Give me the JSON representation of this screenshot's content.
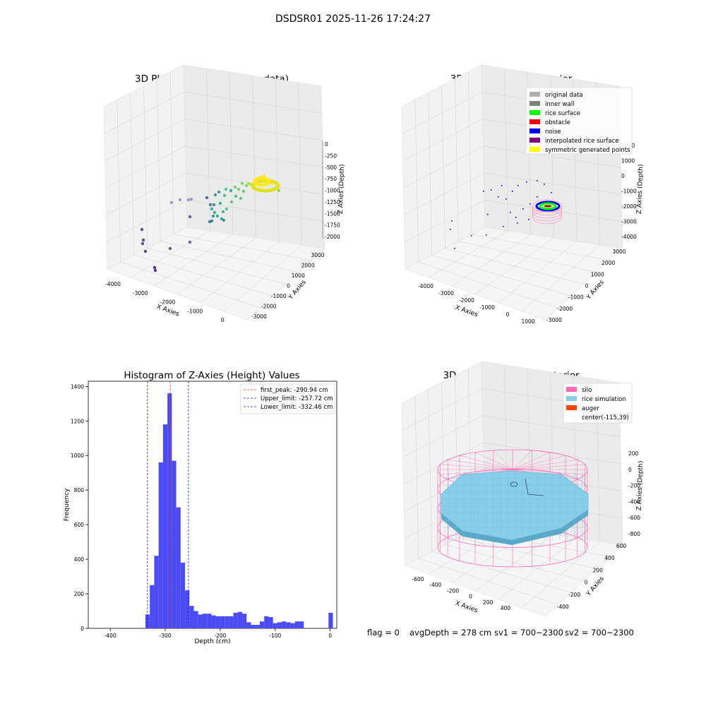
{
  "suptitle": "DSDSR01 2025-11-26 17:24:27",
  "footer": {
    "flag": "flag = 0",
    "avg": "avgDepth = 278 cm",
    "sv1": "sv1 = 700~2300",
    "sv2": "sv2 = 700~2300"
  },
  "colors": {
    "hist_bar": "#4b4bf5",
    "first_peak": "#e0301e",
    "limits": "#1f1fd0",
    "silo": "#ff69b4",
    "rice_sim": "#87ceeb",
    "auger": "#ff4500"
  },
  "chart_data": [
    {
      "type": "scatter",
      "subtype": "3d",
      "title": "3D Plot of Silo Interior(row data)",
      "xlabel": "X Axies",
      "ylabel": "Y Axies",
      "zlabel": "Z Axies (Depth)",
      "xticks": [
        "-4000",
        "-3000",
        "-2000",
        "-1000",
        "0"
      ],
      "yticks": [
        "-3000",
        "-2000",
        "-1000",
        "0",
        "1000",
        "2000",
        "3000"
      ],
      "zticks": [
        "0",
        "-250",
        "-500",
        "-750",
        "-1000",
        "-1250",
        "-1500",
        "-1750",
        "-2000"
      ],
      "colormap": "viridis",
      "grid": true
    },
    {
      "type": "scatter",
      "subtype": "3d",
      "title": "3D classify of Silo Interior",
      "xlabel": "X Axies",
      "ylabel": "Y Axies",
      "zlabel": "Z Axies (Depth)",
      "xticks": [
        "-4000",
        "-3000",
        "-2000",
        "-1000",
        "0",
        "1000"
      ],
      "yticks": [
        "-3000",
        "-2000",
        "-1000",
        "0",
        "1000",
        "2000",
        "3000"
      ],
      "zticks": [
        "2000",
        "1000",
        "0",
        "-1000",
        "-2000",
        "-3000",
        "-4000"
      ],
      "legend_position": "top-right",
      "legend": [
        {
          "label": "original data",
          "color": "#b0b0b0"
        },
        {
          "label": "inner wall",
          "color": "#808080"
        },
        {
          "label": "rice surface",
          "color": "#00ff00"
        },
        {
          "label": "obstacle",
          "color": "#ff0000"
        },
        {
          "label": "noise",
          "color": "#0000ff"
        },
        {
          "label": "interpolated rice surface",
          "color": "#800080"
        },
        {
          "label": "symmetric generated points",
          "color": "#ffff00"
        }
      ],
      "grid": true
    },
    {
      "type": "bar",
      "subtype": "histogram",
      "title": "Histogram of Z-Axies (Height) Values",
      "xlabel": "Depth (cm)",
      "ylabel": "Frequency",
      "xlim": [
        -440,
        12
      ],
      "ylim": [
        0,
        1430
      ],
      "xticks": [
        -400,
        -300,
        -200,
        -100,
        0
      ],
      "yticks": [
        0,
        200,
        400,
        600,
        800,
        1000,
        1200,
        1400
      ],
      "bin_width": 8,
      "bin_starts": [
        -336,
        -328,
        -320,
        -312,
        -304,
        -296,
        -288,
        -280,
        -272,
        -264,
        -256,
        -248,
        -240,
        -232,
        -224,
        -216,
        -208,
        -200,
        -192,
        -184,
        -176,
        -168,
        -160,
        -152,
        -144,
        -136,
        -128,
        -120,
        -112,
        -104,
        -96,
        -88,
        -80,
        -72,
        -64,
        -56,
        -48,
        -40,
        -32,
        -24,
        -16,
        -8,
        -3
      ],
      "values": [
        80,
        250,
        420,
        960,
        1180,
        1360,
        970,
        700,
        380,
        220,
        130,
        100,
        80,
        85,
        85,
        75,
        70,
        70,
        70,
        70,
        90,
        95,
        85,
        35,
        20,
        20,
        40,
        70,
        65,
        30,
        35,
        40,
        35,
        30,
        40,
        40,
        0,
        0,
        0,
        0,
        0,
        0,
        90
      ],
      "vlines": [
        {
          "label": "first_peak: -290.94 cm",
          "x": -290.94,
          "color": "#e0301e"
        },
        {
          "label": "Upper_limit: -257.72 cm",
          "x": -257.72,
          "color": "#1f1fd0"
        },
        {
          "label": "Lower_limit: -332.46 cm",
          "x": -332.46,
          "color": "#1f1fd0"
        }
      ],
      "legend_position": "top-right",
      "grid": false
    },
    {
      "type": "scatter",
      "subtype": "3d-surface",
      "title": "3D simulation of Silo Interior",
      "xlabel": "X Axies",
      "ylabel": "Y Axies",
      "zlabel": "Z Axies (Depth)",
      "xticks": [
        "-600",
        "-400",
        "-200",
        "0",
        "200",
        "400"
      ],
      "yticks": [
        "-400",
        "-200",
        "0",
        "200",
        "400",
        "600"
      ],
      "zticks": [
        "200",
        "0",
        "-200",
        "-400",
        "-600",
        "-800"
      ],
      "legend_position": "top-right",
      "legend": [
        {
          "label": "silo",
          "color": "#ff69b4",
          "marker": "patch"
        },
        {
          "label": "rice simulation",
          "color": "#87ceeb",
          "marker": "patch"
        },
        {
          "label": "auger",
          "color": "#ff4500",
          "marker": "patch"
        },
        {
          "label": "center(-115,39)",
          "color": "",
          "marker": "none"
        }
      ],
      "grid": true
    }
  ]
}
